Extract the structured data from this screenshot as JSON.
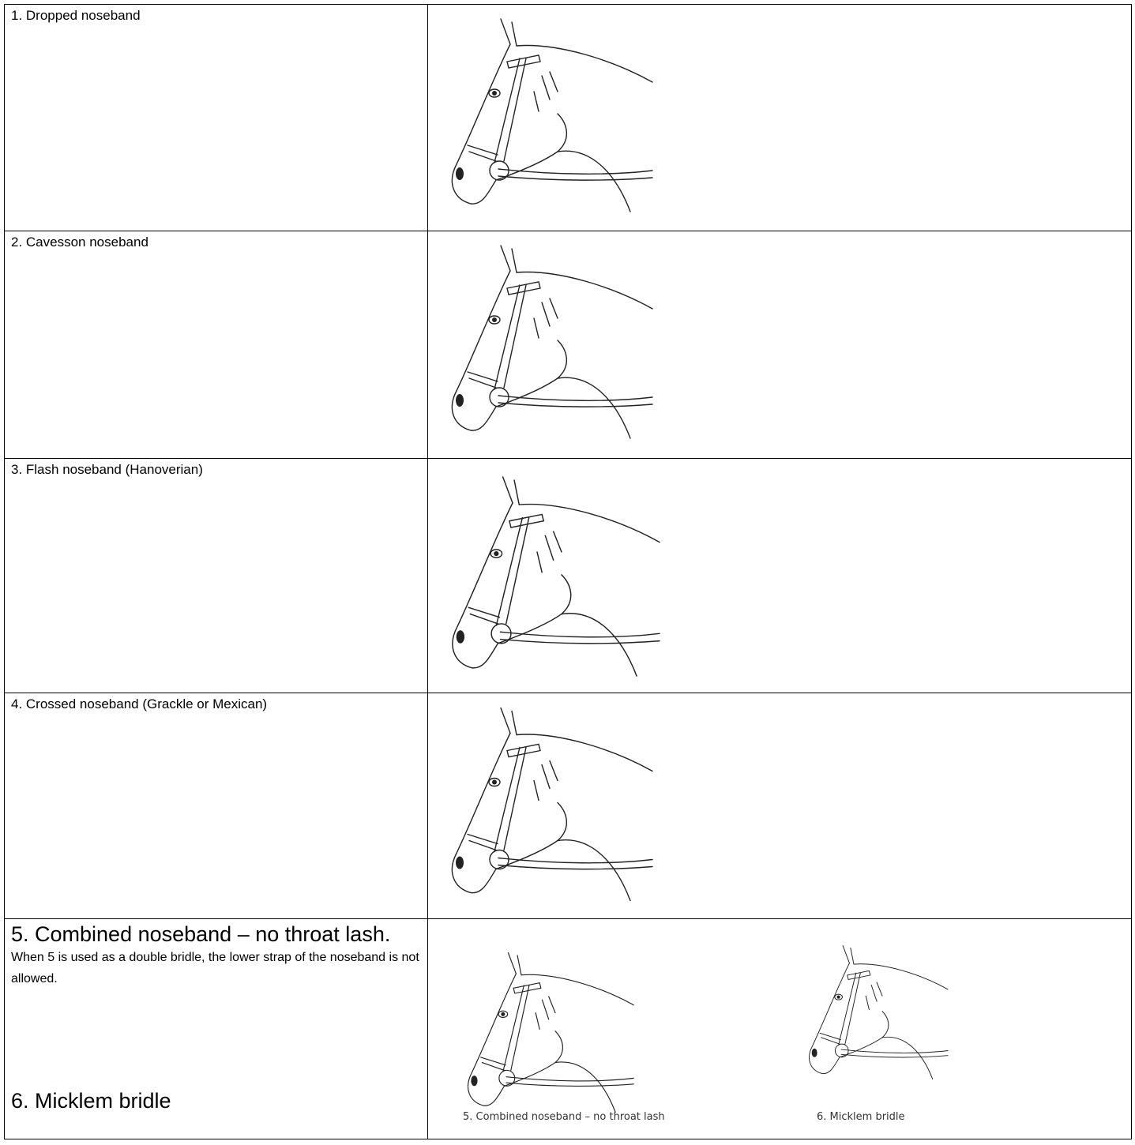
{
  "table": {
    "rows": [
      {
        "label": "1. Dropped noseband"
      },
      {
        "label": "2. Cavesson noseband"
      },
      {
        "label": "3. Flash noseband (Hanoverian)"
      },
      {
        "label": "4. Crossed noseband (Grackle or Mexican)"
      },
      {
        "label": "5. Combined noseband – no throat lash.",
        "note": "When 5 is used as a double bridle, the lower strap of the noseband is not allowed.",
        "label2": "6. Micklem bridle",
        "captions": [
          "5. Combined noseband – no throat lash",
          "6. Micklem bridle"
        ]
      }
    ]
  }
}
